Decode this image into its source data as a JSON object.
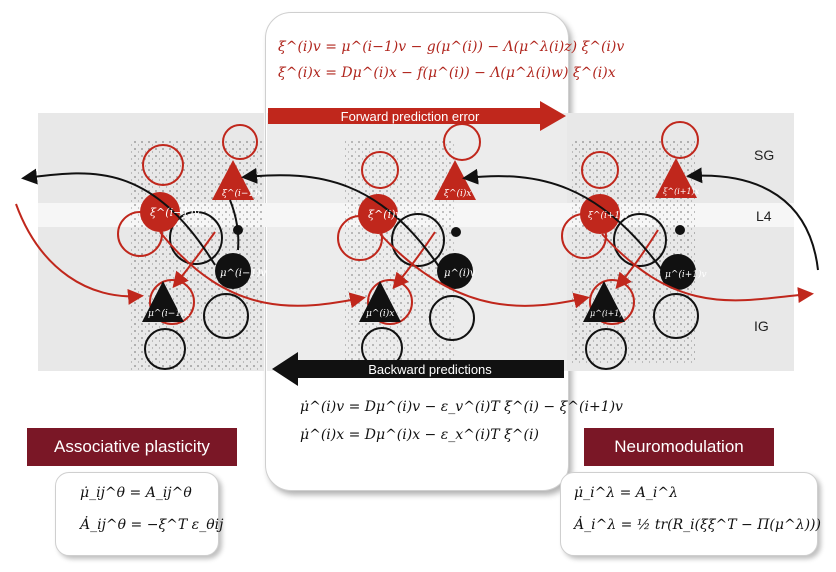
{
  "equations": {
    "forward": [
      "ξ^(i)v = μ^(i−1)v − g(μ^(i)) − Λ(μ^λ(i)z) ξ^(i)v",
      "ξ^(i)x = Dμ^(i)x − f(μ^(i)) − Λ(μ^λ(i)w) ξ^(i)x"
    ],
    "backward": [
      "μ̇^(i)v = Dμ^(i)v − ε_v^(i)T ξ^(i) − ξ^(i+1)v",
      "μ̇^(i)x = Dμ^(i)x − ε_x^(i)T ξ^(i)"
    ],
    "associative": [
      "μ̇_ij^θ = A_ij^θ",
      "Ȧ_ij^θ = −ξ^T ε_θij"
    ],
    "neuromodulation": [
      "μ̇_i^λ = A_i^λ",
      "Ȧ_i^λ = ½ tr(R_i(ξξ^T − Π(μ^λ)))"
    ]
  },
  "arrows": {
    "forward_label": "Forward prediction error",
    "backward_label": "Backward predictions"
  },
  "banners": {
    "associative": "Associative plasticity",
    "neuromodulation": "Neuromodulation"
  },
  "layers": {
    "sg": "SG",
    "l4": "L4",
    "ig": "IG"
  },
  "nodes": {
    "col1": {
      "xi_v": "ξ^(i−1)v",
      "xi_x": "ξ^(i−1)x",
      "mu_x": "μ^(i−1)x",
      "mu_v": "μ^(i−1)v"
    },
    "col2": {
      "xi_v": "ξ^(i)v",
      "xi_x": "ξ^(i)x",
      "mu_x": "μ^(i)x",
      "mu_v": "μ^(i)v"
    },
    "col3": {
      "xi_v": "ξ^(i+1)v",
      "xi_x": "ξ^(i+1)x",
      "mu_x": "μ^(i+1)x",
      "mu_v": "μ^(i+1)v"
    }
  },
  "colors": {
    "red": "#c0271c",
    "banner": "#7a1726",
    "black": "#111111"
  }
}
